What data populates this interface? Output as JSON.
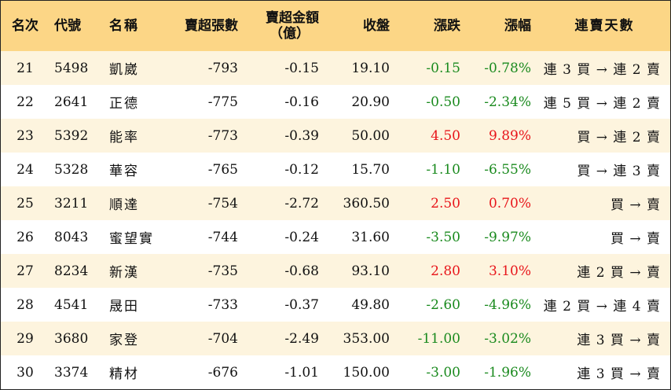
{
  "colors": {
    "header_bg": "#fcd686",
    "row_alt_bg": "#fdf4de",
    "up": "#e8161b",
    "down": "#1a8a1e"
  },
  "headers": {
    "rank": "名次",
    "code": "代號",
    "name": "名稱",
    "net_sell_lots": "賣超張數",
    "net_sell_amount_line1": "賣超金額",
    "net_sell_amount_line2": "（億）",
    "close": "收盤",
    "change": "漲跌",
    "change_pct": "漲幅",
    "streak": "連賣天數"
  },
  "rows": [
    {
      "rank": "21",
      "code": "5498",
      "name": "凱崴",
      "lots": "-793",
      "amount": "-0.15",
      "close": "19.10",
      "change": "-0.15",
      "pct": "-0.78%",
      "dir": "down",
      "streak": "連 3 買 → 連 2 賣"
    },
    {
      "rank": "22",
      "code": "2641",
      "name": "正德",
      "lots": "-775",
      "amount": "-0.16",
      "close": "20.90",
      "change": "-0.50",
      "pct": "-2.34%",
      "dir": "down",
      "streak": "連 5 買 → 連 2 賣"
    },
    {
      "rank": "23",
      "code": "5392",
      "name": "能率",
      "lots": "-773",
      "amount": "-0.39",
      "close": "50.00",
      "change": "4.50",
      "pct": "9.89%",
      "dir": "up",
      "streak": "買 → 連 2 賣"
    },
    {
      "rank": "24",
      "code": "5328",
      "name": "華容",
      "lots": "-765",
      "amount": "-0.12",
      "close": "15.70",
      "change": "-1.10",
      "pct": "-6.55%",
      "dir": "down",
      "streak": "買 → 連 3 賣"
    },
    {
      "rank": "25",
      "code": "3211",
      "name": "順達",
      "lots": "-754",
      "amount": "-2.72",
      "close": "360.50",
      "change": "2.50",
      "pct": "0.70%",
      "dir": "up",
      "streak": "買 → 賣"
    },
    {
      "rank": "26",
      "code": "8043",
      "name": "蜜望實",
      "lots": "-744",
      "amount": "-0.24",
      "close": "31.60",
      "change": "-3.50",
      "pct": "-9.97%",
      "dir": "down",
      "streak": "買 → 賣"
    },
    {
      "rank": "27",
      "code": "8234",
      "name": "新漢",
      "lots": "-735",
      "amount": "-0.68",
      "close": "93.10",
      "change": "2.80",
      "pct": "3.10%",
      "dir": "up",
      "streak": "連 2 買 → 賣"
    },
    {
      "rank": "28",
      "code": "4541",
      "name": "晟田",
      "lots": "-733",
      "amount": "-0.37",
      "close": "49.80",
      "change": "-2.60",
      "pct": "-4.96%",
      "dir": "down",
      "streak": "連 2 買 → 連 4 賣"
    },
    {
      "rank": "29",
      "code": "3680",
      "name": "家登",
      "lots": "-704",
      "amount": "-2.49",
      "close": "353.00",
      "change": "-11.00",
      "pct": "-3.02%",
      "dir": "down",
      "streak": "連 3 買 → 賣"
    },
    {
      "rank": "30",
      "code": "3374",
      "name": "精材",
      "lots": "-676",
      "amount": "-1.01",
      "close": "150.00",
      "change": "-3.00",
      "pct": "-1.96%",
      "dir": "down",
      "streak": "連 3 買 → 賣"
    }
  ]
}
